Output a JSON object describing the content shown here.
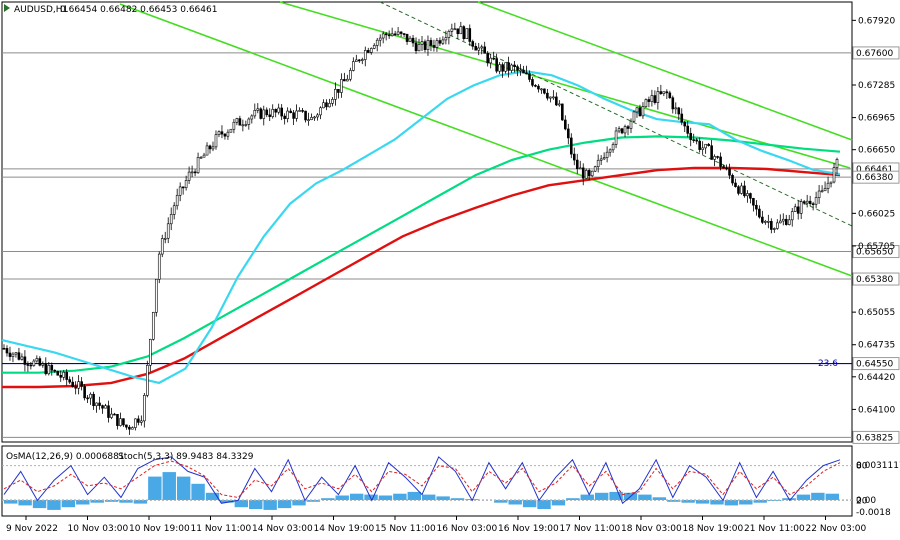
{
  "header": {
    "symbol": "AUDUSD,H1",
    "ohlc": "0.66454 0.66482 0.66453 0.66461"
  },
  "indicator": {
    "label": "OsMA(12,26,9) 0.0006881",
    "stoch_label": "Stoch(5,3,3) 89.9483 84.3329"
  },
  "colors": {
    "bull_candle": "#000000",
    "ma_cyan": "#3ad8f0",
    "ma_green": "#00dc82",
    "ma_red": "#e01010",
    "channel": "#44dd22",
    "fib_line": "#0000c0",
    "level_line": "#8c8c8c",
    "osma_bars": "#49a8e6",
    "stoch_main": "#2233cc",
    "stoch_signal": "#e02020"
  },
  "chart_data": {
    "type": "candlestick",
    "symbol": "AUDUSD",
    "timeframe": "H1",
    "price_ticks": [
      "0.67920",
      "0.67285",
      "0.66965",
      "0.66650",
      "0.66025",
      "0.65705",
      "0.65055",
      "0.64735",
      "0.64420",
      "0.64100"
    ],
    "ylim": [
      0.6378,
      0.681
    ],
    "levels": [
      {
        "label": "0.67600",
        "value": 0.676
      },
      {
        "label": "0.66461",
        "value": 0.66461
      },
      {
        "label": "0.66380",
        "value": 0.6638
      },
      {
        "label": "0.65650",
        "value": 0.6565
      },
      {
        "label": "0.65380",
        "value": 0.6538
      },
      {
        "label": "0.64550",
        "value": 0.6455
      },
      {
        "label": "0.63825",
        "value": 0.63825
      }
    ],
    "fib_label": "23.6",
    "time_labels": [
      "9 Nov 2022",
      "10 Nov 03:00",
      "10 Nov 19:00",
      "11 Nov 11:00",
      "14 Nov 03:00",
      "14 Nov 19:00",
      "15 Nov 11:00",
      "16 Nov 03:00",
      "16 Nov 19:00",
      "17 Nov 11:00",
      "18 Nov 03:00",
      "18 Nov 19:00",
      "21 Nov 11:00",
      "22 Nov 03:00"
    ],
    "close_path": [
      0.647,
      0.6462,
      0.6455,
      0.6448,
      0.644,
      0.643,
      0.6417,
      0.6403,
      0.6392,
      0.6406,
      0.656,
      0.661,
      0.664,
      0.666,
      0.668,
      0.669,
      0.6698,
      0.6702,
      0.67,
      0.67,
      0.6695,
      0.6715,
      0.673,
      0.6755,
      0.6772,
      0.678,
      0.6775,
      0.6765,
      0.677,
      0.6787,
      0.6778,
      0.676,
      0.6745,
      0.6745,
      0.6735,
      0.6725,
      0.6705,
      0.665,
      0.6635,
      0.6665,
      0.6685,
      0.67,
      0.6715,
      0.672,
      0.669,
      0.667,
      0.666,
      0.664,
      0.662,
      0.66,
      0.659,
      0.66,
      0.6615,
      0.662,
      0.665
    ],
    "ma_cyan": [
      0.6478,
      0.6472,
      0.6466,
      0.6458,
      0.645,
      0.6442,
      0.6436,
      0.645,
      0.649,
      0.654,
      0.658,
      0.6612,
      0.6632,
      0.6645,
      0.666,
      0.6675,
      0.6695,
      0.6715,
      0.6728,
      0.6738,
      0.6742,
      0.6738,
      0.6728,
      0.6715,
      0.6704,
      0.6695,
      0.6692,
      0.669,
      0.6675,
      0.6664,
      0.6655,
      0.6645,
      0.6641
    ],
    "ma_green": [
      0.6446,
      0.6446,
      0.6448,
      0.6452,
      0.6462,
      0.648,
      0.65,
      0.652,
      0.654,
      0.656,
      0.658,
      0.66,
      0.662,
      0.664,
      0.6655,
      0.6665,
      0.6672,
      0.6677,
      0.6678,
      0.6677,
      0.6674,
      0.667,
      0.6666,
      0.6663
    ],
    "ma_red": [
      0.6432,
      0.6432,
      0.6433,
      0.6436,
      0.6445,
      0.646,
      0.648,
      0.65,
      0.652,
      0.654,
      0.656,
      0.658,
      0.6595,
      0.6608,
      0.662,
      0.663,
      0.6635,
      0.664,
      0.6645,
      0.6647,
      0.6647,
      0.6646,
      0.6643,
      0.664
    ],
    "osma_ticks": [
      "0.0031117",
      "0.00",
      "-0.0018"
    ],
    "stoch_levels": [
      "80",
      "20"
    ],
    "osma_values": [
      -0.4,
      -0.6,
      -0.9,
      -1.1,
      -0.8,
      -0.5,
      -0.3,
      -0.2,
      -0.3,
      -0.4,
      2.6,
      3.1,
      2.6,
      1.8,
      0.8,
      -0.3,
      -0.8,
      -1.0,
      -1.1,
      -0.9,
      -0.6,
      -0.2,
      0.2,
      0.5,
      0.7,
      0.6,
      0.5,
      0.7,
      0.9,
      0.6,
      0.4,
      0.2,
      0.1,
      0.0,
      -0.3,
      -0.5,
      -0.8,
      -1.0,
      -0.6,
      0.2,
      0.6,
      0.8,
      0.9,
      0.8,
      0.6,
      0.3,
      -0.2,
      -0.3,
      -0.4,
      -0.5,
      -0.6,
      -0.5,
      -0.3,
      -0.1,
      0.2,
      0.6,
      0.8,
      0.7
    ],
    "stoch_main": [
      30,
      70,
      20,
      55,
      80,
      30,
      60,
      25,
      75,
      90,
      95,
      70,
      60,
      15,
      20,
      75,
      35,
      90,
      20,
      60,
      30,
      80,
      20,
      85,
      60,
      30,
      95,
      70,
      20,
      85,
      40,
      85,
      20,
      60,
      90,
      30,
      85,
      15,
      40,
      90,
      25,
      80,
      60,
      20,
      85,
      25,
      70,
      20,
      55,
      80,
      90
    ],
    "stoch_signal": [
      40,
      55,
      35,
      45,
      65,
      45,
      50,
      40,
      60,
      80,
      88,
      78,
      62,
      30,
      25,
      55,
      45,
      75,
      40,
      50,
      40,
      65,
      35,
      70,
      65,
      45,
      80,
      75,
      35,
      70,
      50,
      75,
      35,
      50,
      80,
      45,
      70,
      30,
      35,
      75,
      40,
      70,
      65,
      30,
      70,
      40,
      60,
      30,
      45,
      70,
      85
    ]
  }
}
